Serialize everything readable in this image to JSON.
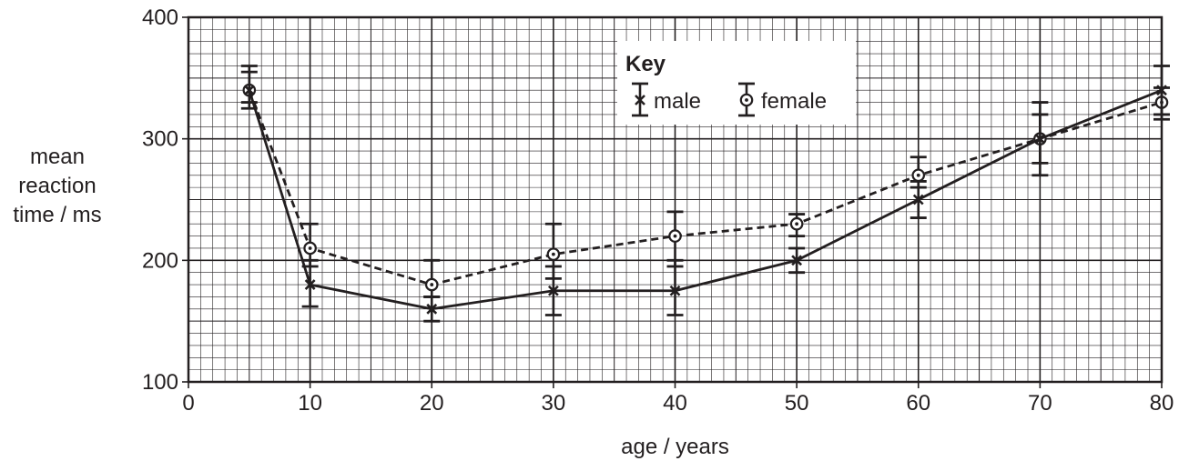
{
  "chart_data": {
    "type": "line",
    "xlabel": "age / years",
    "ylabel": [
      "mean",
      "reaction",
      "time / ms"
    ],
    "xlim": [
      0,
      80
    ],
    "ylim": [
      100,
      400
    ],
    "xticks": [
      "0",
      "10",
      "20",
      "30",
      "40",
      "50",
      "60",
      "70",
      "80"
    ],
    "yticks": [
      "100",
      "200",
      "300",
      "400"
    ],
    "grid": true,
    "legend": {
      "title": "Key",
      "position": "top-right",
      "entries": [
        "male",
        "female"
      ]
    },
    "series": [
      {
        "name": "male",
        "marker": "x",
        "line_style": "solid",
        "x": [
          5,
          10,
          20,
          30,
          40,
          50,
          60,
          70,
          80
        ],
        "y": [
          340,
          180,
          160,
          175,
          175,
          200,
          250,
          300,
          340
        ],
        "error_low": [
          325,
          162,
          150,
          155,
          155,
          190,
          235,
          270,
          320
        ],
        "error_high": [
          355,
          200,
          170,
          195,
          200,
          210,
          265,
          330,
          360
        ]
      },
      {
        "name": "female",
        "marker": "circle-dot",
        "line_style": "dashed",
        "x": [
          5,
          10,
          20,
          30,
          40,
          50,
          60,
          70,
          80
        ],
        "y": [
          340,
          210,
          180,
          205,
          220,
          230,
          270,
          300,
          330
        ],
        "error_low": [
          330,
          195,
          170,
          185,
          195,
          220,
          260,
          280,
          316
        ],
        "error_high": [
          360,
          230,
          200,
          230,
          240,
          238,
          285,
          320,
          342
        ]
      }
    ]
  }
}
